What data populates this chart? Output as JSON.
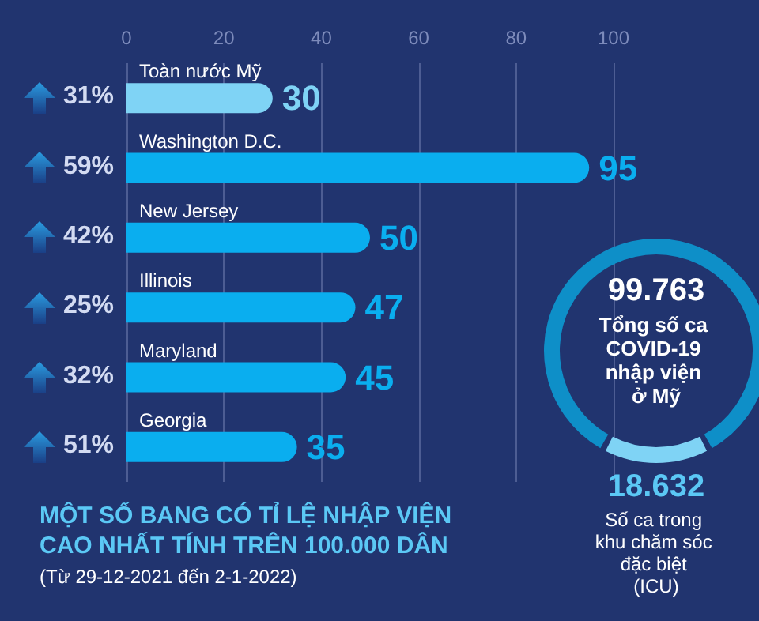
{
  "chart_data": [
    {
      "type": "bar",
      "orientation": "horizontal",
      "title": "MỘT SỐ BANG CÓ TỈ LỆ NHẬP VIỆN CAO NHẤT TÍNH TRÊN 100.000 DÂN",
      "subtitle": "(Từ 29-12-2021 đến 2-1-2022)",
      "categories": [
        "Toàn nước Mỹ",
        "Washington D.C.",
        "New Jersey",
        "Illinois",
        "Maryland",
        "Georgia"
      ],
      "values": [
        30,
        95,
        50,
        47,
        45,
        35
      ],
      "colors": [
        "#7fd3f5",
        "#0aaeef",
        "#0aaeef",
        "#0aaeef",
        "#0aaeef",
        "#0aaeef"
      ],
      "xlim": [
        0,
        100
      ],
      "xticks": [
        0,
        20,
        40,
        60,
        80,
        100
      ],
      "grid": "x",
      "data_labels": true,
      "annotations": [
        "31%",
        "59%",
        "42%",
        "25%",
        "32%",
        "51%"
      ]
    },
    {
      "type": "donut",
      "categories": [
        "Tổng số ca COVID-19 nhập viện ở Mỹ",
        "Số ca trong khu chăm sóc đặc biệt (ICU)"
      ],
      "values": [
        99763,
        18632
      ],
      "colors": [
        "#0e8fc8",
        "#7fd3f5"
      ],
      "value_labels": [
        "99.763",
        "18.632"
      ]
    }
  ]
}
